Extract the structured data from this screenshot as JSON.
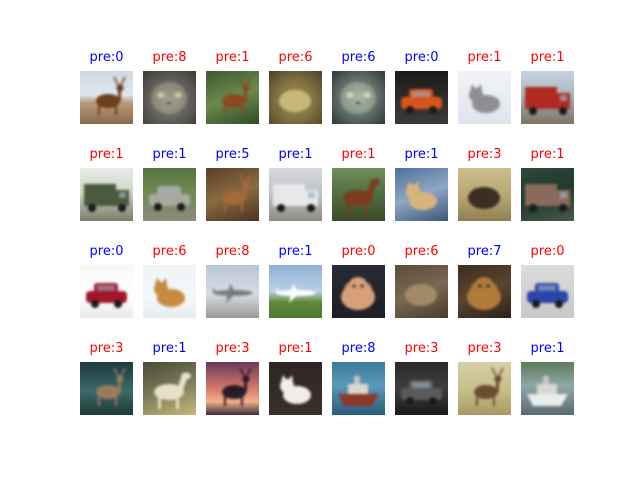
{
  "colors": {
    "correct": "#0000ff",
    "incorrect": "#ff0000"
  },
  "cells": [
    {
      "label": "pre:0",
      "color": "#0000ff",
      "thumb": "deer-on-field"
    },
    {
      "label": "pre:8",
      "color": "#ff0000",
      "thumb": "gray-cat-closeup"
    },
    {
      "label": "pre:1",
      "color": "#ff0000",
      "thumb": "deer-in-grass"
    },
    {
      "label": "pre:6",
      "color": "#ff0000",
      "thumb": "frog-closeup"
    },
    {
      "label": "pre:6",
      "color": "#0000ff",
      "thumb": "cat-face-closeup"
    },
    {
      "label": "pre:0",
      "color": "#0000ff",
      "thumb": "orange-car"
    },
    {
      "label": "pre:1",
      "color": "#ff0000",
      "thumb": "gray-cat-on-snow"
    },
    {
      "label": "pre:1",
      "color": "#ff0000",
      "thumb": "red-fire-truck"
    },
    {
      "label": "pre:1",
      "color": "#ff0000",
      "thumb": "green-truck-with-person"
    },
    {
      "label": "pre:1",
      "color": "#0000ff",
      "thumb": "silver-car-on-road"
    },
    {
      "label": "pre:5",
      "color": "#0000ff",
      "thumb": "deer-antlers"
    },
    {
      "label": "pre:1",
      "color": "#0000ff",
      "thumb": "white-semi-truck"
    },
    {
      "label": "pre:1",
      "color": "#ff0000",
      "thumb": "brown-horse"
    },
    {
      "label": "pre:1",
      "color": "#0000ff",
      "thumb": "cat-behind-glass"
    },
    {
      "label": "pre:3",
      "color": "#ff0000",
      "thumb": "bird-on-ground"
    },
    {
      "label": "pre:1",
      "color": "#ff0000",
      "thumb": "crashed-truck"
    },
    {
      "label": "pre:0",
      "color": "#0000ff",
      "thumb": "red-suv"
    },
    {
      "label": "pre:6",
      "color": "#ff0000",
      "thumb": "orange-cat"
    },
    {
      "label": "pre:8",
      "color": "#ff0000",
      "thumb": "airplane-on-runway"
    },
    {
      "label": "pre:1",
      "color": "#0000ff",
      "thumb": "airliner-landing"
    },
    {
      "label": "pre:0",
      "color": "#ff0000",
      "thumb": "fluffy-dog"
    },
    {
      "label": "pre:6",
      "color": "#ff0000",
      "thumb": "animal-in-brush"
    },
    {
      "label": "pre:7",
      "color": "#0000ff",
      "thumb": "brown-dog"
    },
    {
      "label": "pre:0",
      "color": "#ff0000",
      "thumb": "blue-race-car"
    },
    {
      "label": "pre:3",
      "color": "#ff0000",
      "thumb": "deer-in-dark-forest"
    },
    {
      "label": "pre:1",
      "color": "#0000ff",
      "thumb": "horse-head"
    },
    {
      "label": "pre:3",
      "color": "#ff0000",
      "thumb": "deer-at-sunset"
    },
    {
      "label": "pre:1",
      "color": "#ff0000",
      "thumb": "white-cat-dark"
    },
    {
      "label": "pre:8",
      "color": "#0000ff",
      "thumb": "ship-on-water"
    },
    {
      "label": "pre:3",
      "color": "#ff0000",
      "thumb": "dark-car"
    },
    {
      "label": "pre:3",
      "color": "#ff0000",
      "thumb": "deer-on-grass"
    },
    {
      "label": "pre:1",
      "color": "#0000ff",
      "thumb": "boat-on-water"
    }
  ]
}
